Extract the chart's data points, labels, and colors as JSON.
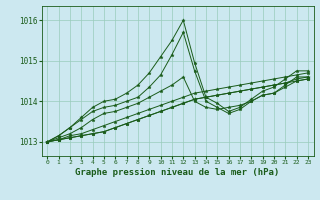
{
  "bg_color": "#cce8f0",
  "grid_color": "#99ccbb",
  "line_color": "#1a5c1a",
  "marker": "*",
  "title": "Graphe pression niveau de la mer (hPa)",
  "title_fontsize": 6.5,
  "xlim": [
    -0.5,
    23.5
  ],
  "ylim": [
    1012.65,
    1016.35
  ],
  "yticks": [
    1013,
    1014,
    1015,
    1016
  ],
  "xticks": [
    0,
    1,
    2,
    3,
    4,
    5,
    6,
    7,
    8,
    9,
    10,
    11,
    12,
    13,
    14,
    15,
    16,
    17,
    18,
    19,
    20,
    21,
    22,
    23
  ],
  "series": [
    [
      1013.0,
      1013.05,
      1013.1,
      1013.15,
      1013.2,
      1013.25,
      1013.35,
      1013.45,
      1013.55,
      1013.65,
      1013.75,
      1013.85,
      1013.95,
      1014.05,
      1014.1,
      1014.15,
      1014.2,
      1014.25,
      1014.3,
      1014.35,
      1014.4,
      1014.45,
      1014.5,
      1014.55
    ],
    [
      1013.0,
      1013.05,
      1013.1,
      1013.15,
      1013.2,
      1013.25,
      1013.35,
      1013.45,
      1013.55,
      1013.65,
      1013.75,
      1013.85,
      1013.95,
      1014.05,
      1014.1,
      1014.15,
      1014.2,
      1014.25,
      1014.3,
      1014.35,
      1014.4,
      1014.45,
      1014.55,
      1014.6
    ],
    [
      1013.0,
      1013.05,
      1013.15,
      1013.2,
      1013.3,
      1013.4,
      1013.5,
      1013.6,
      1013.7,
      1013.8,
      1013.9,
      1014.0,
      1014.1,
      1014.2,
      1014.25,
      1014.3,
      1014.35,
      1014.4,
      1014.45,
      1014.5,
      1014.55,
      1014.6,
      1014.65,
      1014.7
    ],
    [
      1013.0,
      1013.1,
      1013.2,
      1013.35,
      1013.55,
      1013.7,
      1013.75,
      1013.85,
      1013.95,
      1014.1,
      1014.25,
      1014.4,
      1014.6,
      1014.0,
      1013.85,
      1013.8,
      1013.85,
      1013.9,
      1014.0,
      1014.15,
      1014.2,
      1014.35,
      1014.5,
      1014.55
    ],
    [
      1013.0,
      1013.15,
      1013.35,
      1013.55,
      1013.75,
      1013.85,
      1013.9,
      1014.0,
      1014.1,
      1014.35,
      1014.65,
      1015.15,
      1015.7,
      1014.75,
      1014.0,
      1013.85,
      1013.7,
      1013.8,
      1014.0,
      1014.15,
      1014.2,
      1014.4,
      1014.6,
      1014.6
    ],
    [
      1013.0,
      1013.15,
      1013.35,
      1013.6,
      1013.85,
      1014.0,
      1014.05,
      1014.2,
      1014.4,
      1014.7,
      1015.1,
      1015.5,
      1016.0,
      1014.95,
      1014.1,
      1013.95,
      1013.75,
      1013.85,
      1014.05,
      1014.25,
      1014.35,
      1014.55,
      1014.75,
      1014.75
    ]
  ]
}
